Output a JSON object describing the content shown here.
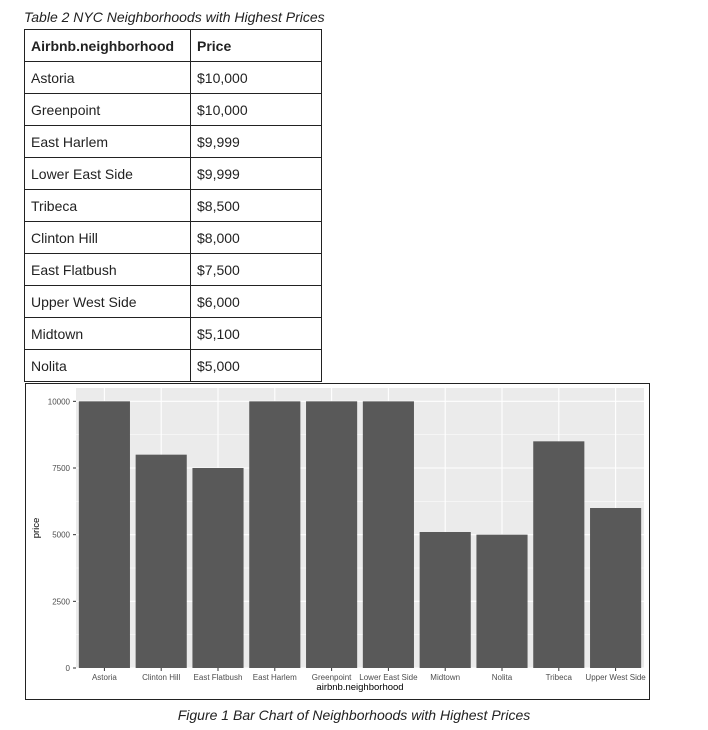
{
  "table": {
    "caption": "Table 2 NYC Neighborhoods with Highest Prices",
    "headers": [
      "Airbnb.neighborhood",
      "Price"
    ],
    "rows": [
      [
        "Astoria",
        "$10,000"
      ],
      [
        "Greenpoint",
        "$10,000"
      ],
      [
        "East Harlem",
        "$9,999"
      ],
      [
        "Lower East Side",
        "$9,999"
      ],
      [
        "Tribeca",
        "$8,500"
      ],
      [
        "Clinton Hill",
        "$8,000"
      ],
      [
        "East Flatbush",
        "$7,500"
      ],
      [
        "Upper West Side",
        "$6,000"
      ],
      [
        "Midtown",
        "$5,100"
      ],
      [
        "Nolita",
        "$5,000"
      ]
    ]
  },
  "figure": {
    "caption": "Figure 1 Bar Chart of Neighborhoods with Highest Prices"
  },
  "chart_data": {
    "type": "bar",
    "categories": [
      "Astoria",
      "Clinton Hill",
      "East Flatbush",
      "East Harlem",
      "Greenpoint",
      "Lower East Side",
      "Midtown",
      "Nolita",
      "Tribeca",
      "Upper West Side"
    ],
    "values": [
      10000,
      8000,
      7500,
      9999,
      10000,
      9999,
      5100,
      5000,
      8500,
      6000
    ],
    "xlabel": "airbnb.neighborhood",
    "ylabel": "price",
    "yticks": [
      0,
      2500,
      5000,
      7500,
      10000
    ],
    "ytick_labels": [
      "0",
      "2500",
      "5000",
      "7500",
      "10000"
    ],
    "ylim": [
      0,
      10500
    ],
    "grid": true,
    "colors": {
      "bar": "#595959",
      "panel": "#ebebeb",
      "grid": "#ffffff"
    }
  }
}
